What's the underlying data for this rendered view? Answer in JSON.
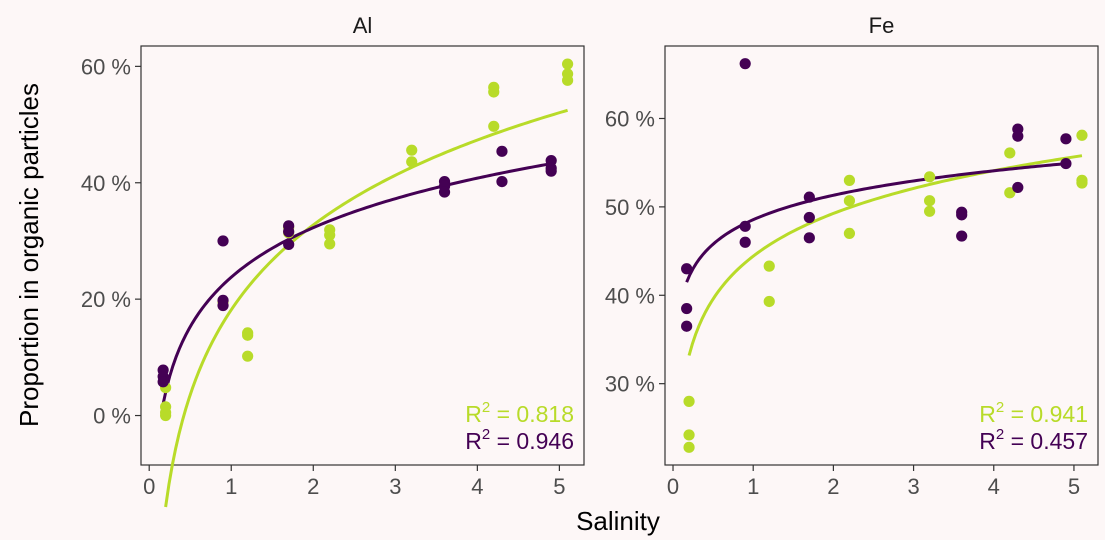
{
  "colors": {
    "background": "#fdf7f7",
    "series_light": "#b8db29",
    "series_dark": "#440154",
    "axis": "#333333",
    "tick_text": "#4d4d4d"
  },
  "chart_data": {
    "type": "scatter",
    "xlabel": "Salinity",
    "ylabel": "Proportion in organic particles",
    "grid": false,
    "facets": [
      {
        "title": "Al",
        "xlim": [
          -0.1,
          5.3
        ],
        "ylim": [
          -8.5,
          63.5
        ],
        "xticks": [
          0,
          1,
          2,
          3,
          4,
          5
        ],
        "xtick_labels": [
          "0",
          "1",
          "2",
          "3",
          "4",
          "5"
        ],
        "yticks": [
          0,
          20,
          40,
          60
        ],
        "ytick_labels": [
          "0 %",
          "20 %",
          "40 %",
          "60 %"
        ],
        "series": [
          {
            "color": "#b8db29",
            "points": [
              [
                0.2,
                4.8
              ],
              [
                0.2,
                1.5
              ],
              [
                0.2,
                0.5
              ],
              [
                0.2,
                0.0
              ],
              [
                0.9,
                19.5
              ],
              [
                1.2,
                14.2
              ],
              [
                1.2,
                13.8
              ],
              [
                1.2,
                10.2
              ],
              [
                1.7,
                32.3
              ],
              [
                1.7,
                31.4
              ],
              [
                2.2,
                31.9
              ],
              [
                2.2,
                31.0
              ],
              [
                2.2,
                29.5
              ],
              [
                3.2,
                45.6
              ],
              [
                3.2,
                43.6
              ],
              [
                4.2,
                56.4
              ],
              [
                4.2,
                55.6
              ],
              [
                4.2,
                49.7
              ],
              [
                5.1,
                60.4
              ],
              [
                5.1,
                58.7
              ],
              [
                5.1,
                57.6
              ]
            ],
            "fit": {
              "model": "log",
              "a": 18.16,
              "b": 21.05
            },
            "r2_label": "R² = 0.818",
            "r2_value": "0.818"
          },
          {
            "color": "#440154",
            "points": [
              [
                0.17,
                7.8
              ],
              [
                0.17,
                6.7
              ],
              [
                0.17,
                5.8
              ],
              [
                0.9,
                30.0
              ],
              [
                0.9,
                19.8
              ],
              [
                0.9,
                18.9
              ],
              [
                1.7,
                32.6
              ],
              [
                1.7,
                31.6
              ],
              [
                1.7,
                29.4
              ],
              [
                3.6,
                40.2
              ],
              [
                3.6,
                39.4
              ],
              [
                3.6,
                38.4
              ],
              [
                4.3,
                45.4
              ],
              [
                4.3,
                40.2
              ],
              [
                4.9,
                43.8
              ],
              [
                4.9,
                42.5
              ],
              [
                4.9,
                42.0
              ]
            ],
            "fit": {
              "model": "log",
              "a": 23.77,
              "b": 12.28
            },
            "r2_label": "R² = 0.946",
            "r2_value": "0.946"
          }
        ]
      },
      {
        "title": "Fe",
        "xlim": [
          -0.1,
          5.3
        ],
        "ylim": [
          20.8,
          68.2
        ],
        "xticks": [
          0,
          1,
          2,
          3,
          4,
          5
        ],
        "xtick_labels": [
          "0",
          "1",
          "2",
          "3",
          "4",
          "5"
        ],
        "yticks": [
          30,
          40,
          50,
          60
        ],
        "ytick_labels": [
          "30 %",
          "40 %",
          "50 %",
          "60 %"
        ],
        "series": [
          {
            "color": "#b8db29",
            "points": [
              [
                0.2,
                28.0
              ],
              [
                0.2,
                24.2
              ],
              [
                0.2,
                22.8
              ],
              [
                1.2,
                43.3
              ],
              [
                1.2,
                39.3
              ],
              [
                2.2,
                53.0
              ],
              [
                2.2,
                50.7
              ],
              [
                2.2,
                47.0
              ],
              [
                3.2,
                53.4
              ],
              [
                3.2,
                50.7
              ],
              [
                3.2,
                49.5
              ],
              [
                4.2,
                56.1
              ],
              [
                4.2,
                51.6
              ],
              [
                5.1,
                58.1
              ],
              [
                5.1,
                53.0
              ],
              [
                5.1,
                52.7
              ]
            ],
            "fit": {
              "model": "log",
              "a": 44.42,
              "b": 6.98
            },
            "r2_label": "R² = 0.941",
            "r2_value": "0.941"
          },
          {
            "color": "#440154",
            "points": [
              [
                0.17,
                43.0
              ],
              [
                0.17,
                38.5
              ],
              [
                0.17,
                36.5
              ],
              [
                0.9,
                66.2
              ],
              [
                0.9,
                47.8
              ],
              [
                0.9,
                46.0
              ],
              [
                1.7,
                51.1
              ],
              [
                1.7,
                48.8
              ],
              [
                1.7,
                46.5
              ],
              [
                3.6,
                49.4
              ],
              [
                3.6,
                49.1
              ],
              [
                3.6,
                46.7
              ],
              [
                4.3,
                58.8
              ],
              [
                4.3,
                58.0
              ],
              [
                4.3,
                52.2
              ],
              [
                4.9,
                57.7
              ],
              [
                4.9,
                54.9
              ]
            ],
            "fit": {
              "model": "log",
              "a": 48.55,
              "b": 3.99
            },
            "r2_label": "R² = 0.457",
            "r2_value": "0.457"
          }
        ]
      }
    ]
  }
}
